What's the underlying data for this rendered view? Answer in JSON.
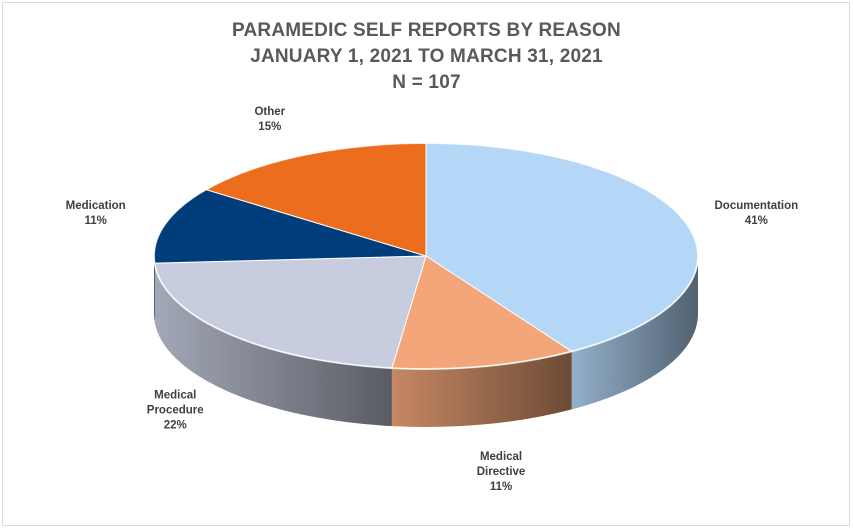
{
  "chart_data": {
    "type": "pie",
    "title_lines": [
      "PARAMEDIC SELF REPORTS BY REASON",
      "JANUARY 1, 2021 TO MARCH 31, 2021",
      "N = 107"
    ],
    "slices": [
      {
        "name": "Documentation",
        "label_lines": [
          "Documentation"
        ],
        "value": 41,
        "value_label": "41%",
        "color": "#b4d7f8"
      },
      {
        "name": "Medical Directive",
        "label_lines": [
          "Medical",
          "Directive"
        ],
        "value": 11,
        "value_label": "11%",
        "color": "#f2a679"
      },
      {
        "name": "Medical Procedure",
        "label_lines": [
          "Medical",
          "Procedure"
        ],
        "value": 22,
        "value_label": "22%",
        "color": "#c7cddf"
      },
      {
        "name": "Medication",
        "label_lines": [
          "Medication"
        ],
        "value": 11,
        "value_label": "11%",
        "color": "#003d7b"
      },
      {
        "name": "Other",
        "label_lines": [
          "Other"
        ],
        "value": 15,
        "value_label": "15%",
        "color": "#ed6d1f"
      }
    ],
    "style": "3d-pie",
    "legend": "none",
    "data_labels": "outside"
  }
}
